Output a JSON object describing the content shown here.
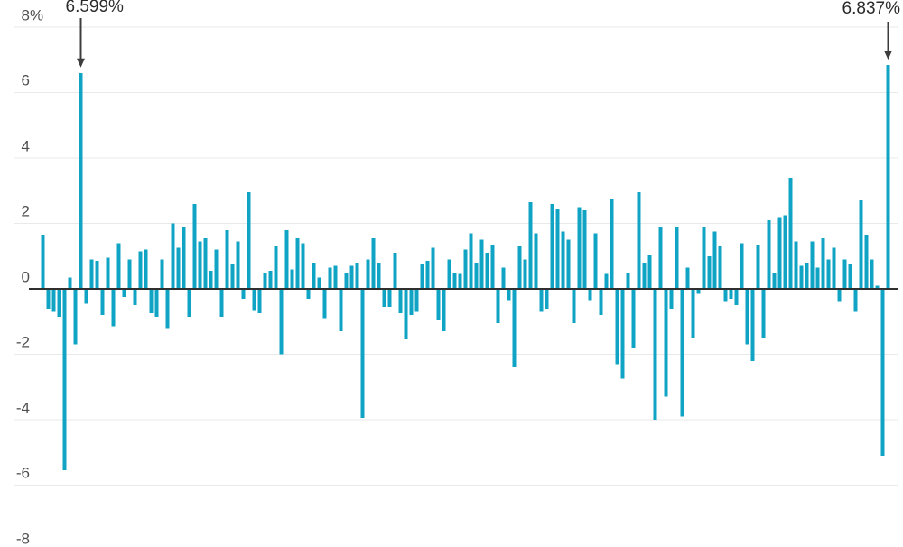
{
  "chart_data": {
    "type": "bar",
    "unit": "%",
    "description_visible_text_only": "",
    "y_axis": {
      "range": [
        -8,
        8
      ],
      "tick_step": 2,
      "ticks": [
        {
          "value": 8,
          "label": "8",
          "suffix": "%"
        },
        {
          "value": 6,
          "label": "6",
          "suffix": ""
        },
        {
          "value": 4,
          "label": "4",
          "suffix": ""
        },
        {
          "value": 2,
          "label": "2",
          "suffix": ""
        },
        {
          "value": 0,
          "label": "0",
          "suffix": ""
        },
        {
          "value": -2,
          "label": "-2",
          "suffix": ""
        },
        {
          "value": -4,
          "label": "-4",
          "suffix": ""
        },
        {
          "value": -6,
          "label": "-6",
          "suffix": ""
        },
        {
          "value": -8,
          "label": "-8",
          "suffix": ""
        }
      ],
      "gridlines": true
    },
    "values": [
      1.65,
      -0.6,
      -0.7,
      -0.85,
      -5.55,
      0.35,
      -1.7,
      6.599,
      -0.45,
      0.9,
      0.85,
      -0.8,
      0.95,
      -1.15,
      1.4,
      -0.25,
      0.9,
      -0.5,
      1.15,
      1.2,
      -0.75,
      -0.85,
      0.9,
      -1.2,
      2.0,
      1.25,
      1.9,
      -0.85,
      2.6,
      1.45,
      1.55,
      0.55,
      1.2,
      -0.85,
      1.8,
      0.75,
      1.45,
      -0.3,
      2.95,
      -0.65,
      -0.75,
      0.5,
      0.55,
      1.3,
      -2.0,
      1.8,
      0.6,
      1.55,
      1.4,
      -0.3,
      0.8,
      0.35,
      -0.9,
      0.65,
      0.7,
      -1.3,
      0.5,
      0.7,
      0.8,
      -3.95,
      0.9,
      1.55,
      0.8,
      -0.55,
      -0.55,
      1.1,
      -0.75,
      -1.55,
      -0.8,
      -0.7,
      0.75,
      0.85,
      1.25,
      -0.95,
      -1.3,
      0.9,
      0.5,
      0.45,
      1.2,
      1.7,
      0.8,
      1.5,
      1.1,
      1.35,
      -1.05,
      0.65,
      -0.35,
      -2.4,
      1.3,
      0.9,
      2.65,
      1.7,
      -0.7,
      -0.6,
      2.6,
      2.45,
      1.75,
      1.5,
      -1.05,
      2.5,
      2.4,
      -0.35,
      1.7,
      -0.8,
      0.45,
      2.75,
      -2.3,
      -2.75,
      0.5,
      -1.8,
      2.95,
      0.8,
      1.05,
      -4.0,
      1.9,
      -3.3,
      -0.6,
      1.9,
      -3.9,
      0.65,
      -1.5,
      -0.15,
      1.9,
      1.0,
      1.75,
      1.3,
      -0.4,
      -0.3,
      -0.5,
      1.4,
      -1.7,
      -2.2,
      1.35,
      -1.5,
      2.1,
      0.5,
      2.2,
      2.25,
      3.4,
      1.45,
      0.7,
      0.8,
      1.45,
      0.65,
      1.55,
      0.9,
      1.25,
      -0.4,
      0.9,
      0.75,
      -0.7,
      2.7,
      1.65,
      0.9,
      0.1,
      -5.1,
      6.837
    ],
    "annotations": [
      {
        "text": "6.599%",
        "value": 6.599,
        "bar_index": 7,
        "side": "left"
      },
      {
        "text": "6.837%",
        "value": 6.837,
        "bar_index": 156,
        "side": "right"
      }
    ],
    "colors": {
      "bar": "#0fa3c4",
      "gridline": "#e9e9e9",
      "zero_line": "#2f2f2f",
      "axis_text": "#4f4f4f",
      "annotation_text": "#2b2b2b",
      "arrow": "#3d3d3d",
      "background": "#ffffff"
    },
    "layout_hints": {
      "legend": "none",
      "grid": "horizontal-only",
      "zero_line_emphasized": true
    }
  }
}
